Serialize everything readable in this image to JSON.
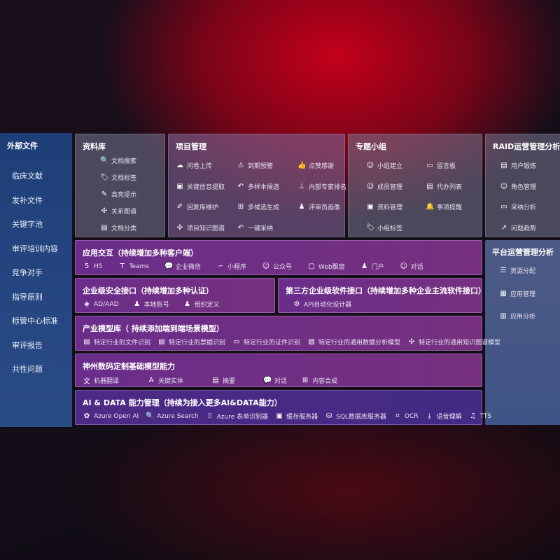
{
  "sidebar": {
    "title": "外部文件",
    "items": [
      "临床文献",
      "发补文件",
      "关键字池",
      "审评培训内容",
      "竞争对手",
      "指导原则",
      "标管中心标准",
      "审评报告",
      "共性问题"
    ]
  },
  "library": {
    "title": "资料库",
    "items": [
      {
        "icon": "doc-search-icon",
        "g": "🔍",
        "label": "文档搜索"
      },
      {
        "icon": "tag-icon",
        "g": "🏷",
        "label": "文档标签"
      },
      {
        "icon": "pen-icon",
        "g": "✎",
        "label": "高亮提示"
      },
      {
        "icon": "graph-icon",
        "g": "✣",
        "label": "关系图谱"
      },
      {
        "icon": "doc-category-icon",
        "g": "▤",
        "label": "文档分类"
      }
    ]
  },
  "project": {
    "title": "项目管理",
    "items": [
      {
        "icon": "cloud-upload-icon",
        "g": "☁",
        "label": "问卷上传"
      },
      {
        "icon": "alarm-icon",
        "g": "⚠",
        "label": "到期预警"
      },
      {
        "icon": "thumbs-up-icon",
        "g": "👍",
        "label": "点赞感谢"
      },
      {
        "icon": "extract-icon",
        "g": "▣",
        "label": "关键信息提取"
      },
      {
        "icon": "reply-icon",
        "g": "↶",
        "label": "多样本候选"
      },
      {
        "icon": "rank-icon",
        "g": "⊥",
        "label": "内部专家排名"
      },
      {
        "icon": "edit-icon",
        "g": "✐",
        "label": "回复库维护"
      },
      {
        "icon": "puzzle-icon",
        "g": "⊞",
        "label": "多候选生成"
      },
      {
        "icon": "person-icon",
        "g": "♟",
        "label": "评审员画像"
      },
      {
        "icon": "knowledge-graph-icon",
        "g": "✣",
        "label": "项目知识图谱"
      },
      {
        "icon": "reply-icon",
        "g": "↶",
        "label": "一键采纳"
      }
    ]
  },
  "group": {
    "title": "专题小组",
    "items": [
      {
        "icon": "group-icon",
        "g": "☺",
        "label": "小组建立"
      },
      {
        "icon": "bbs-icon",
        "g": "▭",
        "label": "留言板"
      },
      {
        "icon": "member-icon",
        "g": "☺",
        "label": "成员管理"
      },
      {
        "icon": "clipboard-icon",
        "g": "▤",
        "label": "代办列表"
      },
      {
        "icon": "folder-icon",
        "g": "▣",
        "label": "资料管理"
      },
      {
        "icon": "bell-icon",
        "g": "🔔",
        "label": "事项提醒"
      },
      {
        "icon": "tag-icon",
        "g": "🏷",
        "label": "小组标签"
      }
    ]
  },
  "raid": {
    "title": "RAID运营管理分析",
    "items": [
      {
        "icon": "id-card-icon",
        "g": "▤",
        "label": "用户锻炼"
      },
      {
        "icon": "users-icon",
        "g": "☺",
        "label": "角色管理"
      },
      {
        "icon": "qa-icon",
        "g": "▭",
        "label": "采纳分析"
      },
      {
        "icon": "trend-icon",
        "g": "↗",
        "label": "问题趋势"
      }
    ]
  },
  "platform": {
    "title": "平台运营管理分析",
    "items": [
      {
        "icon": "list-icon",
        "g": "☰",
        "label": "资源分配"
      },
      {
        "icon": "apps-icon",
        "g": "▦",
        "label": "应用管理"
      },
      {
        "icon": "chart-icon",
        "g": "▥",
        "label": "应用分析"
      }
    ]
  },
  "interaction": {
    "title": "应用交互（持续增加多种客户端）",
    "items": [
      {
        "icon": "html5-icon",
        "g": "5",
        "label": "H5"
      },
      {
        "icon": "teams-icon",
        "g": "T",
        "label": "Teams"
      },
      {
        "icon": "wechat-icon",
        "g": "💬",
        "label": "企业微信"
      },
      {
        "icon": "miniprogram-icon",
        "g": "∽",
        "label": "小程序"
      },
      {
        "icon": "official-account-icon",
        "g": "☺",
        "label": "公众号"
      },
      {
        "icon": "window-icon",
        "g": "▢",
        "label": "Web飘窗"
      },
      {
        "icon": "portal-icon",
        "g": "♟",
        "label": "门户"
      },
      {
        "icon": "chat-icon",
        "g": "☺",
        "label": "对话"
      }
    ]
  },
  "security": {
    "title": "企业级安全接口（持续增加多种认证）",
    "items": [
      {
        "icon": "ad-icon",
        "g": "◈",
        "label": "AD/AAD"
      },
      {
        "icon": "local-account-icon",
        "g": "♟",
        "label": "本地账号"
      },
      {
        "icon": "org-icon",
        "g": "♟",
        "label": "组织定义"
      }
    ]
  },
  "thirdparty": {
    "title": "第三方企业级软件接口（持续增加多种企业主流软件接口）",
    "items": [
      {
        "icon": "api-gear-icon",
        "g": "⚙",
        "label": "API自动化设计器"
      }
    ]
  },
  "industry": {
    "title": "产业模型库（ 持续添加端到端场景模型）",
    "items": [
      {
        "icon": "file-icon",
        "g": "▤",
        "label": "特定行业的文件识别"
      },
      {
        "icon": "receipt-icon",
        "g": "▤",
        "label": "特定行业的票据识别"
      },
      {
        "icon": "id-card-icon",
        "g": "▭",
        "label": "特定行业的证件识别"
      },
      {
        "icon": "image-icon",
        "g": "▨",
        "label": "特定行业的通用数据分析模型"
      },
      {
        "icon": "graph-icon",
        "g": "✣",
        "label": "特定行业的通用知识图谱模型"
      }
    ]
  },
  "base": {
    "title": "神州数码定制基础模型能力",
    "items": [
      {
        "icon": "translate-icon",
        "g": "文",
        "label": "机器翻译"
      },
      {
        "icon": "entity-icon",
        "g": "A",
        "label": "关键实体"
      },
      {
        "icon": "summary-icon",
        "g": "▤",
        "label": "摘要"
      },
      {
        "icon": "dialog-icon",
        "g": "💬",
        "label": "对话"
      },
      {
        "icon": "puzzle-icon",
        "g": "⊞",
        "label": "内容合成"
      }
    ]
  },
  "ai": {
    "title": "AI & DATA 能力管理（持续为接入更多AI&DATA能力）",
    "items": [
      {
        "icon": "openai-icon",
        "g": "✿",
        "label": "Azure Open AI"
      },
      {
        "icon": "search-doc-icon",
        "g": "🔍",
        "label": "Azure Search"
      },
      {
        "icon": "form-icon",
        "g": "⌷",
        "label": "Azure 表单识别器"
      },
      {
        "icon": "cache-icon",
        "g": "▣",
        "label": "缓存服务器"
      },
      {
        "icon": "sql-icon",
        "g": "⛁",
        "label": "SQL数据库服务器"
      },
      {
        "icon": "ocr-icon",
        "g": "⌗",
        "label": "OCR"
      },
      {
        "icon": "speech-icon",
        "g": "⤓",
        "label": "语音理解"
      },
      {
        "icon": "tts-icon",
        "g": "♫",
        "label": "TTS"
      }
    ]
  }
}
